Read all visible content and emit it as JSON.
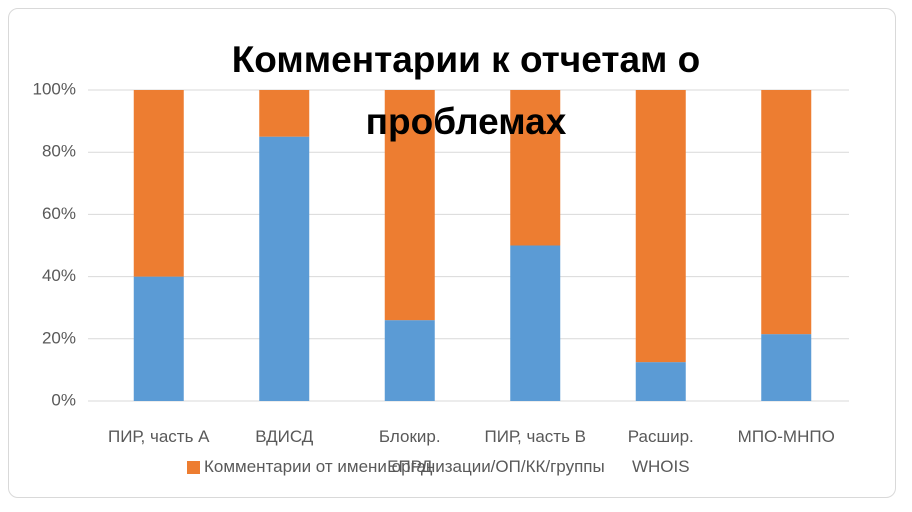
{
  "chart_data": {
    "type": "stacked_bar_100",
    "title": "Комментарии к отчетам о проблемах",
    "categories": [
      "ПИР, часть A",
      "ВДИСД",
      "Блокир. ЕПРД",
      "ПИР, часть B",
      "Расшир. WHOIS",
      "МПО-МНПО"
    ],
    "series": [
      {
        "color": "#5b9bd5",
        "values": [
          40,
          85,
          26,
          50,
          12.5,
          21.5
        ]
      },
      {
        "name": "Комментарии от имени организации/ОП/КК/группы",
        "color": "#ed7d31",
        "values": [
          60,
          15,
          74,
          50,
          87.5,
          78.5
        ]
      }
    ],
    "ylim": [
      0,
      100
    ],
    "yticks": [
      {
        "value": 0,
        "label": "0%"
      },
      {
        "value": 20,
        "label": "20%"
      },
      {
        "value": 40,
        "label": "40%"
      },
      {
        "value": 60,
        "label": "60%"
      },
      {
        "value": 80,
        "label": "80%"
      },
      {
        "value": 100,
        "label": "100%"
      }
    ],
    "grid": true,
    "legend": "bottom"
  }
}
